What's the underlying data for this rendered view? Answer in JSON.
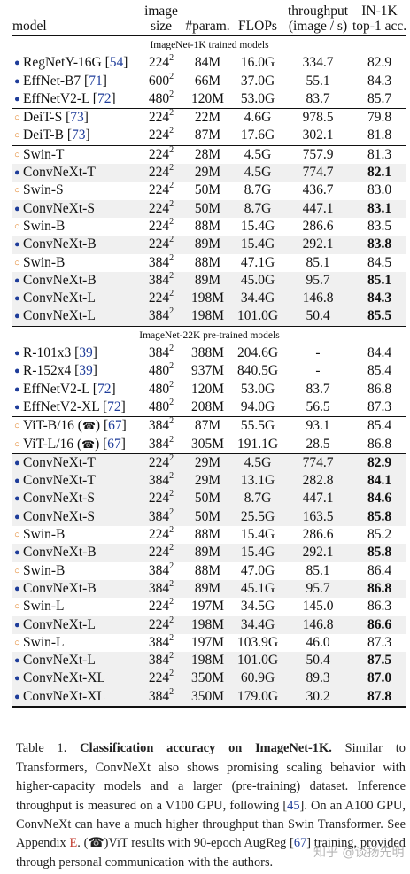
{
  "table": {
    "headers": {
      "model": "model",
      "size_l1": "image",
      "size_l2": "size",
      "param": "#param.",
      "flops": "FLOPs",
      "thr_l1": "throughput",
      "thr_l2": "(image / s)",
      "acc_l1": "IN-1K",
      "acc_l2": "top-1 acc."
    },
    "sections": [
      {
        "title": "ImageNet-1K trained models",
        "rows": [
          {
            "marker": "filled",
            "name": "RegNetY-16G",
            "cite": "54",
            "size": "224",
            "param": "84M",
            "flops": "16.0G",
            "throughput": "334.7",
            "acc": "82.9",
            "bold": false,
            "shaded": false,
            "group_start": false
          },
          {
            "marker": "filled",
            "name": "EffNet-B7",
            "cite": "71",
            "size": "600",
            "param": "66M",
            "flops": "37.0G",
            "throughput": "55.1",
            "acc": "84.3",
            "bold": false,
            "shaded": false,
            "group_start": false
          },
          {
            "marker": "filled",
            "name": "EffNetV2-L",
            "cite": "72",
            "size": "480",
            "param": "120M",
            "flops": "53.0G",
            "throughput": "83.7",
            "acc": "85.7",
            "bold": false,
            "shaded": false,
            "group_start": false
          },
          {
            "marker": "hollow",
            "name": "DeiT-S",
            "cite": "73",
            "size": "224",
            "param": "22M",
            "flops": "4.6G",
            "throughput": "978.5",
            "acc": "79.8",
            "bold": false,
            "shaded": false,
            "group_start": true
          },
          {
            "marker": "hollow",
            "name": "DeiT-B",
            "cite": "73",
            "size": "224",
            "param": "87M",
            "flops": "17.6G",
            "throughput": "302.1",
            "acc": "81.8",
            "bold": false,
            "shaded": false,
            "group_start": false
          },
          {
            "marker": "hollow",
            "name": "Swin-T",
            "cite": "",
            "size": "224",
            "param": "28M",
            "flops": "4.5G",
            "throughput": "757.9",
            "acc": "81.3",
            "bold": false,
            "shaded": false,
            "group_start": true
          },
          {
            "marker": "filled",
            "name": "ConvNeXt-T",
            "cite": "",
            "size": "224",
            "param": "29M",
            "flops": "4.5G",
            "throughput": "774.7",
            "acc": "82.1",
            "bold": true,
            "shaded": true,
            "group_start": false
          },
          {
            "marker": "hollow",
            "name": "Swin-S",
            "cite": "",
            "size": "224",
            "param": "50M",
            "flops": "8.7G",
            "throughput": "436.7",
            "acc": "83.0",
            "bold": false,
            "shaded": false,
            "group_start": false
          },
          {
            "marker": "filled",
            "name": "ConvNeXt-S",
            "cite": "",
            "size": "224",
            "param": "50M",
            "flops": "8.7G",
            "throughput": "447.1",
            "acc": "83.1",
            "bold": true,
            "shaded": true,
            "group_start": false
          },
          {
            "marker": "hollow",
            "name": "Swin-B",
            "cite": "",
            "size": "224",
            "param": "88M",
            "flops": "15.4G",
            "throughput": "286.6",
            "acc": "83.5",
            "bold": false,
            "shaded": false,
            "group_start": false
          },
          {
            "marker": "filled",
            "name": "ConvNeXt-B",
            "cite": "",
            "size": "224",
            "param": "89M",
            "flops": "15.4G",
            "throughput": "292.1",
            "acc": "83.8",
            "bold": true,
            "shaded": true,
            "group_start": false
          },
          {
            "marker": "hollow",
            "name": "Swin-B",
            "cite": "",
            "size": "384",
            "param": "88M",
            "flops": "47.1G",
            "throughput": "85.1",
            "acc": "84.5",
            "bold": false,
            "shaded": false,
            "group_start": false
          },
          {
            "marker": "filled",
            "name": "ConvNeXt-B",
            "cite": "",
            "size": "384",
            "param": "89M",
            "flops": "45.0G",
            "throughput": "95.7",
            "acc": "85.1",
            "bold": true,
            "shaded": true,
            "group_start": false
          },
          {
            "marker": "filled",
            "name": "ConvNeXt-L",
            "cite": "",
            "size": "224",
            "param": "198M",
            "flops": "34.4G",
            "throughput": "146.8",
            "acc": "84.3",
            "bold": true,
            "shaded": true,
            "group_start": false
          },
          {
            "marker": "filled",
            "name": "ConvNeXt-L",
            "cite": "",
            "size": "384",
            "param": "198M",
            "flops": "101.0G",
            "throughput": "50.4",
            "acc": "85.5",
            "bold": true,
            "shaded": true,
            "group_start": false
          }
        ]
      },
      {
        "title": "ImageNet-22K pre-trained models",
        "rows": [
          {
            "marker": "filled",
            "name": "R-101x3",
            "cite": "39",
            "size": "384",
            "param": "388M",
            "flops": "204.6G",
            "throughput": "-",
            "acc": "84.4",
            "bold": false,
            "shaded": false,
            "group_start": false
          },
          {
            "marker": "filled",
            "name": "R-152x4",
            "cite": "39",
            "size": "480",
            "param": "937M",
            "flops": "840.5G",
            "throughput": "-",
            "acc": "85.4",
            "bold": false,
            "shaded": false,
            "group_start": false
          },
          {
            "marker": "filled",
            "name": "EffNetV2-L",
            "cite": "72",
            "size": "480",
            "param": "120M",
            "flops": "53.0G",
            "throughput": "83.7",
            "acc": "86.8",
            "bold": false,
            "shaded": false,
            "group_start": false
          },
          {
            "marker": "filled",
            "name": "EffNetV2-XL",
            "cite": "72",
            "size": "480",
            "param": "208M",
            "flops": "94.0G",
            "throughput": "56.5",
            "acc": "87.3",
            "bold": false,
            "shaded": false,
            "group_start": false
          },
          {
            "marker": "hollow",
            "name": "ViT-B/16",
            "icon": "phone",
            "cite": "67",
            "size": "384",
            "param": "87M",
            "flops": "55.5G",
            "throughput": "93.1",
            "acc": "85.4",
            "bold": false,
            "shaded": false,
            "group_start": true
          },
          {
            "marker": "hollow",
            "name": "ViT-L/16",
            "icon": "phone",
            "cite": "67",
            "size": "384",
            "param": "305M",
            "flops": "191.1G",
            "throughput": "28.5",
            "acc": "86.8",
            "bold": false,
            "shaded": false,
            "group_start": false
          },
          {
            "marker": "filled",
            "name": "ConvNeXt-T",
            "cite": "",
            "size": "224",
            "param": "29M",
            "flops": "4.5G",
            "throughput": "774.7",
            "acc": "82.9",
            "bold": true,
            "shaded": true,
            "group_start": true
          },
          {
            "marker": "filled",
            "name": "ConvNeXt-T",
            "cite": "",
            "size": "384",
            "param": "29M",
            "flops": "13.1G",
            "throughput": "282.8",
            "acc": "84.1",
            "bold": true,
            "shaded": true,
            "group_start": false
          },
          {
            "marker": "filled",
            "name": "ConvNeXt-S",
            "cite": "",
            "size": "224",
            "param": "50M",
            "flops": "8.7G",
            "throughput": "447.1",
            "acc": "84.6",
            "bold": true,
            "shaded": true,
            "group_start": false
          },
          {
            "marker": "filled",
            "name": "ConvNeXt-S",
            "cite": "",
            "size": "384",
            "param": "50M",
            "flops": "25.5G",
            "throughput": "163.5",
            "acc": "85.8",
            "bold": true,
            "shaded": true,
            "group_start": false
          },
          {
            "marker": "hollow",
            "name": "Swin-B",
            "cite": "",
            "size": "224",
            "param": "88M",
            "flops": "15.4G",
            "throughput": "286.6",
            "acc": "85.2",
            "bold": false,
            "shaded": false,
            "group_start": false
          },
          {
            "marker": "filled",
            "name": "ConvNeXt-B",
            "cite": "",
            "size": "224",
            "param": "89M",
            "flops": "15.4G",
            "throughput": "292.1",
            "acc": "85.8",
            "bold": true,
            "shaded": true,
            "group_start": false
          },
          {
            "marker": "hollow",
            "name": "Swin-B",
            "cite": "",
            "size": "384",
            "param": "88M",
            "flops": "47.0G",
            "throughput": "85.1",
            "acc": "86.4",
            "bold": false,
            "shaded": false,
            "group_start": false
          },
          {
            "marker": "filled",
            "name": "ConvNeXt-B",
            "cite": "",
            "size": "384",
            "param": "89M",
            "flops": "45.1G",
            "throughput": "95.7",
            "acc": "86.8",
            "bold": true,
            "shaded": true,
            "group_start": false
          },
          {
            "marker": "hollow",
            "name": "Swin-L",
            "cite": "",
            "size": "224",
            "param": "197M",
            "flops": "34.5G",
            "throughput": "145.0",
            "acc": "86.3",
            "bold": false,
            "shaded": false,
            "group_start": false
          },
          {
            "marker": "filled",
            "name": "ConvNeXt-L",
            "cite": "",
            "size": "224",
            "param": "198M",
            "flops": "34.4G",
            "throughput": "146.8",
            "acc": "86.6",
            "bold": true,
            "shaded": true,
            "group_start": false
          },
          {
            "marker": "hollow",
            "name": "Swin-L",
            "cite": "",
            "size": "384",
            "param": "197M",
            "flops": "103.9G",
            "throughput": "46.0",
            "acc": "87.3",
            "bold": false,
            "shaded": false,
            "group_start": false
          },
          {
            "marker": "filled",
            "name": "ConvNeXt-L",
            "cite": "",
            "size": "384",
            "param": "198M",
            "flops": "101.0G",
            "throughput": "50.4",
            "acc": "87.5",
            "bold": true,
            "shaded": true,
            "group_start": false
          },
          {
            "marker": "filled",
            "name": "ConvNeXt-XL",
            "cite": "",
            "size": "224",
            "param": "350M",
            "flops": "60.9G",
            "throughput": "89.3",
            "acc": "87.0",
            "bold": true,
            "shaded": true,
            "group_start": false
          },
          {
            "marker": "filled",
            "name": "ConvNeXt-XL",
            "cite": "",
            "size": "384",
            "param": "350M",
            "flops": "179.0G",
            "throughput": "30.2",
            "acc": "87.8",
            "bold": true,
            "shaded": true,
            "group_start": false
          }
        ]
      }
    ],
    "size_exponent": "2",
    "colors": {
      "filled_marker": "#1f3d9a",
      "hollow_marker": "#e07b1a",
      "row_shade": "#f0f0f0",
      "cite": "#1f3d9a"
    }
  },
  "caption": {
    "label": "Table 1.",
    "title": "Classification accuracy on ImageNet-1K.",
    "text1": " Similar to Transformers, ConvNeXt also shows promising scaling behavior with higher-capacity models and a larger (pre-training) dataset. Inference throughput is measured on a V100 GPU, following [",
    "cite1": "45",
    "text2": "]. On an A100 GPU, ConvNeXt can have a much higher throughput than Swin Transformer. See Appendix ",
    "appendix": "E",
    "text3": ". (☎)ViT results with 90-epoch AugReg [",
    "cite2": "67",
    "text4": "] training, provided through personal communication with the authors."
  },
  "watermark": "知乎 @谈扬先明"
}
